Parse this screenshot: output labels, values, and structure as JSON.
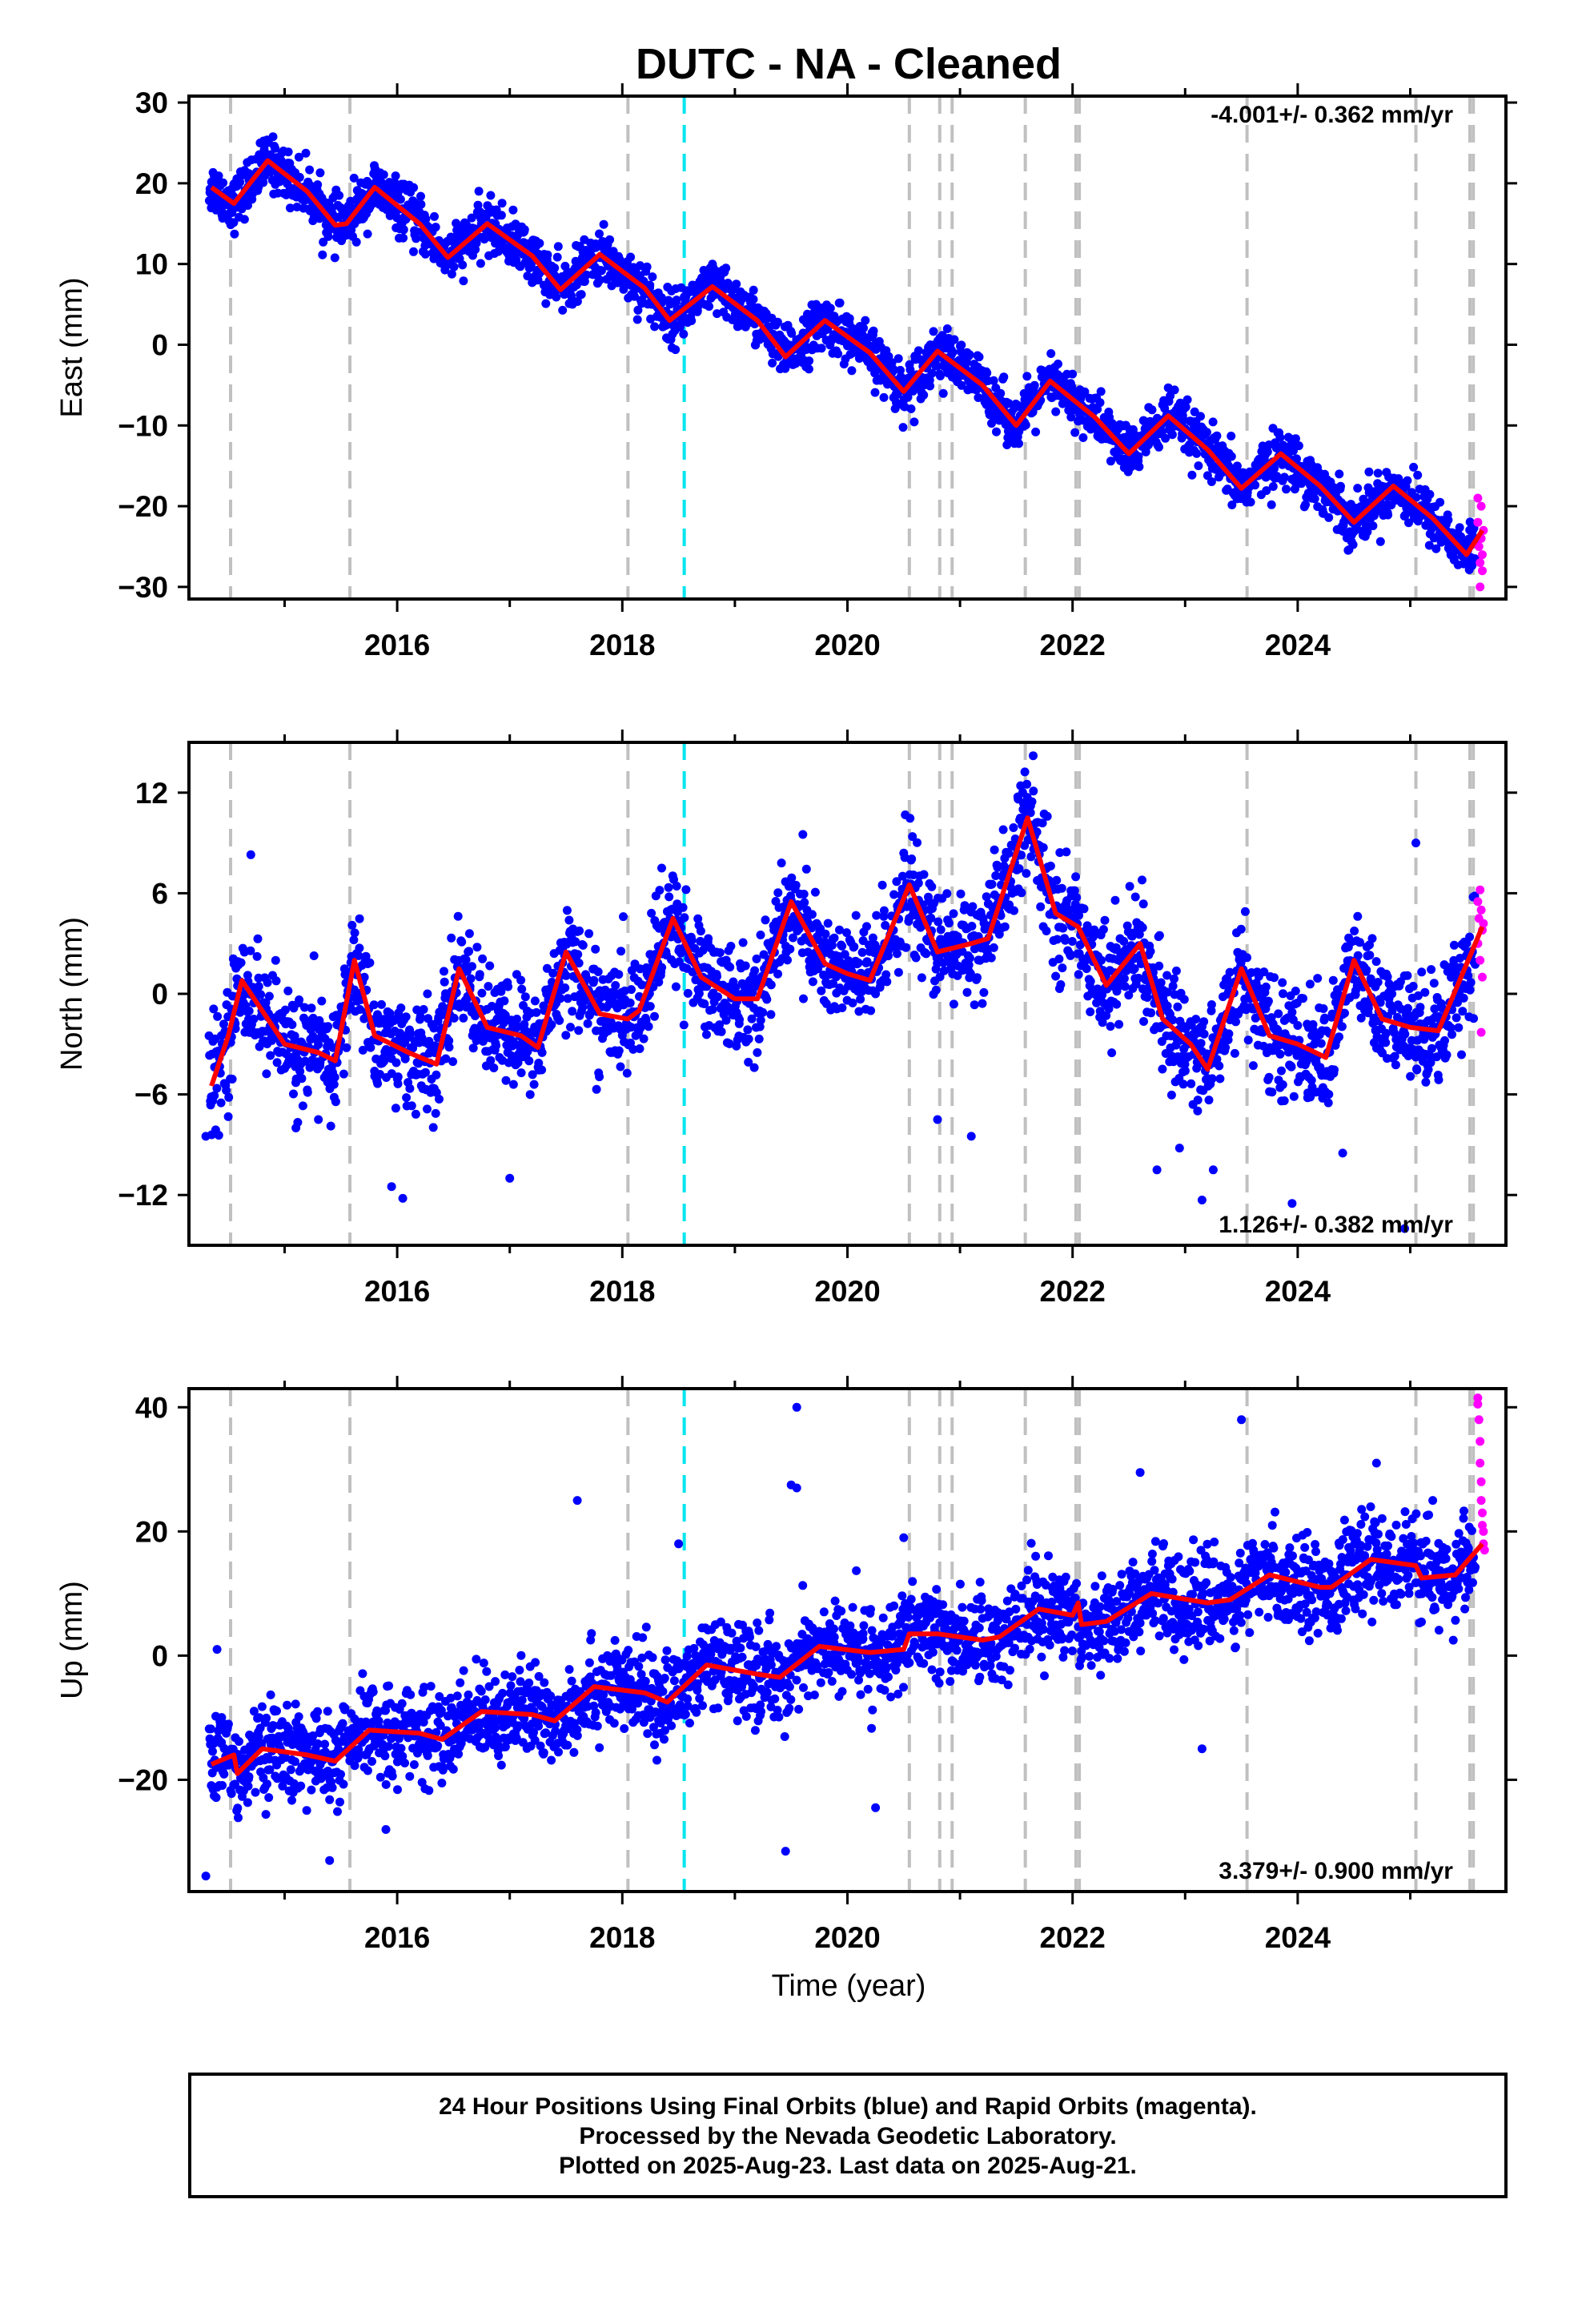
{
  "title": "DUTC  - NA - Cleaned",
  "xlabel": "Time (year)",
  "footer": {
    "line1": "24 Hour Positions Using Final Orbits (blue) and Rapid Orbits (magenta).",
    "line2": "Processed by the Nevada Geodetic Laboratory.",
    "line3": "Plotted on 2025-Aug-23. Last data on 2025-Aug-21."
  },
  "colors": {
    "final_orbits": "#0000ff",
    "rapid_orbits": "#ff00ff",
    "model": "#ff0000",
    "event_lines": "#c0c0c0",
    "equipment_line": "#00e5ee"
  },
  "chart_data": [
    {
      "type": "scatter",
      "component": "East",
      "ylabel": "East (mm)",
      "rate_label": "-4.001+/- 0.362 mm/yr",
      "xlim": [
        2014.15,
        2025.85
      ],
      "ylim": [
        -31.5,
        30.8
      ],
      "xticks": [
        2016,
        2018,
        2020,
        2022,
        2024
      ],
      "yticks": [
        -30,
        -20,
        -10,
        0,
        10,
        20,
        30
      ],
      "ytick_labels": [
        "−30",
        "−20",
        "−10",
        "0",
        "10",
        "20",
        "30"
      ],
      "rate_position": "top-right",
      "trend": {
        "t0": 2014.35,
        "v0": 19.5,
        "rate": -4.001
      },
      "seasonal": {
        "amplitude": 3.2,
        "phase": 0.25
      },
      "scatter_sd": 1.6,
      "fit_curve": [
        [
          2014.35,
          19.5
        ],
        [
          2014.55,
          17.5
        ],
        [
          2014.85,
          22.8
        ],
        [
          2015.2,
          19.0
        ],
        [
          2015.45,
          14.8
        ],
        [
          2015.55,
          15.0
        ],
        [
          2015.8,
          19.5
        ],
        [
          2016.2,
          15.0
        ],
        [
          2016.45,
          10.8
        ],
        [
          2016.8,
          15.0
        ],
        [
          2017.2,
          11.0
        ],
        [
          2017.45,
          6.8
        ],
        [
          2017.8,
          11.2
        ],
        [
          2018.2,
          7.0
        ],
        [
          2018.42,
          3.0
        ],
        [
          2018.8,
          7.2
        ],
        [
          2019.2,
          3.0
        ],
        [
          2019.45,
          -1.5
        ],
        [
          2019.8,
          3.0
        ],
        [
          2020.2,
          -1.0
        ],
        [
          2020.5,
          -5.8
        ],
        [
          2020.8,
          -0.8
        ],
        [
          2021.2,
          -5.0
        ],
        [
          2021.5,
          -10.0
        ],
        [
          2021.8,
          -4.5
        ],
        [
          2022.2,
          -9.0
        ],
        [
          2022.5,
          -13.5
        ],
        [
          2022.85,
          -8.8
        ],
        [
          2023.2,
          -13.0
        ],
        [
          2023.5,
          -17.8
        ],
        [
          2023.85,
          -13.5
        ],
        [
          2024.2,
          -17.5
        ],
        [
          2024.5,
          -22.0
        ],
        [
          2024.85,
          -17.5
        ],
        [
          2025.2,
          -21.5
        ],
        [
          2025.5,
          -26.0
        ],
        [
          2025.64,
          -23.0
        ]
      ],
      "rapid_points": [
        [
          2025.6,
          -19
        ],
        [
          2025.6,
          -22
        ],
        [
          2025.61,
          -25
        ],
        [
          2025.62,
          -27
        ],
        [
          2025.62,
          -30
        ],
        [
          2025.63,
          -20
        ],
        [
          2025.63,
          -24
        ],
        [
          2025.64,
          -26
        ],
        [
          2025.64,
          -28
        ],
        [
          2025.65,
          -23
        ]
      ]
    },
    {
      "type": "scatter",
      "component": "North",
      "ylabel": "North (mm)",
      "rate_label": "1.126+/- 0.382 mm/yr",
      "xlim": [
        2014.15,
        2025.85
      ],
      "ylim": [
        -15.0,
        15.0
      ],
      "xticks": [
        2016,
        2018,
        2020,
        2022,
        2024
      ],
      "yticks": [
        -12,
        -6,
        0,
        6,
        12
      ],
      "ytick_labels": [
        "−12",
        "−6",
        "0",
        "6",
        "12"
      ],
      "rate_position": "bottom-right",
      "scatter_sd": 1.6,
      "fit_curve": [
        [
          2014.35,
          -5.5
        ],
        [
          2014.5,
          -2.5
        ],
        [
          2014.62,
          0.8
        ],
        [
          2014.8,
          -1.0
        ],
        [
          2015.0,
          -3.0
        ],
        [
          2015.3,
          -3.5
        ],
        [
          2015.45,
          -4.0
        ],
        [
          2015.62,
          2.0
        ],
        [
          2015.8,
          -2.5
        ],
        [
          2016.1,
          -3.5
        ],
        [
          2016.35,
          -4.2
        ],
        [
          2016.55,
          1.5
        ],
        [
          2016.8,
          -2.0
        ],
        [
          2017.1,
          -2.5
        ],
        [
          2017.25,
          -3.2
        ],
        [
          2017.5,
          2.5
        ],
        [
          2017.8,
          -1.2
        ],
        [
          2018.05,
          -1.5
        ],
        [
          2018.15,
          -1.0
        ],
        [
          2018.45,
          4.5
        ],
        [
          2018.7,
          1.0
        ],
        [
          2019.0,
          -0.3
        ],
        [
          2019.2,
          -0.3
        ],
        [
          2019.5,
          5.5
        ],
        [
          2019.8,
          1.8
        ],
        [
          2020.0,
          1.2
        ],
        [
          2020.2,
          0.8
        ],
        [
          2020.55,
          6.5
        ],
        [
          2020.8,
          2.5
        ],
        [
          2021.1,
          3.0
        ],
        [
          2021.25,
          3.3
        ],
        [
          2021.6,
          10.5
        ],
        [
          2021.85,
          4.8
        ],
        [
          2022.05,
          4.0
        ],
        [
          2022.3,
          0.5
        ],
        [
          2022.6,
          3.0
        ],
        [
          2022.8,
          -1.5
        ],
        [
          2023.05,
          -3.0
        ],
        [
          2023.2,
          -4.5
        ],
        [
          2023.5,
          1.5
        ],
        [
          2023.75,
          -2.5
        ],
        [
          2024.0,
          -3.0
        ],
        [
          2024.25,
          -3.8
        ],
        [
          2024.5,
          2.0
        ],
        [
          2024.75,
          -1.5
        ],
        [
          2025.0,
          -2.0
        ],
        [
          2025.25,
          -2.2
        ],
        [
          2025.64,
          4.0
        ]
      ],
      "outliers": [
        [
          2014.3,
          -8.5
        ],
        [
          2014.7,
          8.3
        ],
        [
          2015.1,
          -8.0
        ],
        [
          2015.3,
          -7.5
        ],
        [
          2015.95,
          -11.5
        ],
        [
          2016.05,
          -12.2
        ],
        [
          2017.0,
          -11.0
        ],
        [
          2018.35,
          7.5
        ],
        [
          2020.8,
          -7.5
        ],
        [
          2021.1,
          -8.5
        ],
        [
          2021.65,
          14.2
        ],
        [
          2022.75,
          -10.5
        ],
        [
          2022.95,
          -9.2
        ],
        [
          2023.15,
          -12.3
        ],
        [
          2023.25,
          -10.5
        ],
        [
          2023.95,
          -12.5
        ],
        [
          2024.4,
          -9.5
        ],
        [
          2024.95,
          -14.0
        ],
        [
          2025.05,
          9.0
        ]
      ],
      "rapid_points": [
        [
          2025.6,
          5.5
        ],
        [
          2025.6,
          3.0
        ],
        [
          2025.61,
          4.5
        ],
        [
          2025.62,
          6.2
        ],
        [
          2025.62,
          2.0
        ],
        [
          2025.63,
          -2.3
        ],
        [
          2025.63,
          5.0
        ],
        [
          2025.64,
          3.8
        ],
        [
          2025.64,
          1.0
        ],
        [
          2025.65,
          4.2
        ]
      ]
    },
    {
      "type": "scatter",
      "component": "Up",
      "ylabel": "Up (mm)",
      "rate_label": "3.379+/- 0.900 mm/yr",
      "xlim": [
        2014.15,
        2025.85
      ],
      "ylim": [
        -38.0,
        43.0
      ],
      "xticks": [
        2016,
        2018,
        2020,
        2022,
        2024
      ],
      "yticks": [
        -20,
        0,
        20,
        40
      ],
      "ytick_labels": [
        "−20",
        "0",
        "20",
        "40"
      ],
      "rate_position": "bottom-right",
      "trend": {
        "t0": 2014.35,
        "v0": -17.0,
        "rate": 3.379
      },
      "seasonal": {
        "amplitude": 2.0,
        "phase": 0.6
      },
      "scatter_sd": 3.6,
      "fit_curve": [
        [
          2014.35,
          -17.5
        ],
        [
          2014.55,
          -16.0
        ],
        [
          2014.58,
          -19.0
        ],
        [
          2014.8,
          -15.0
        ],
        [
          2015.2,
          -16.0
        ],
        [
          2015.45,
          -17.0
        ],
        [
          2015.75,
          -12.0
        ],
        [
          2016.2,
          -12.5
        ],
        [
          2016.4,
          -13.5
        ],
        [
          2016.75,
          -9.0
        ],
        [
          2017.2,
          -9.5
        ],
        [
          2017.4,
          -10.5
        ],
        [
          2017.75,
          -5.0
        ],
        [
          2018.2,
          -6.0
        ],
        [
          2018.4,
          -7.5
        ],
        [
          2018.75,
          -1.5
        ],
        [
          2019.2,
          -3.0
        ],
        [
          2019.4,
          -3.5
        ],
        [
          2019.75,
          1.5
        ],
        [
          2020.2,
          0.5
        ],
        [
          2020.5,
          1.0
        ],
        [
          2020.55,
          3.5
        ],
        [
          2020.8,
          3.5
        ],
        [
          2021.2,
          2.5
        ],
        [
          2021.35,
          3.0
        ],
        [
          2021.7,
          7.5
        ],
        [
          2022.0,
          6.5
        ],
        [
          2022.05,
          8.5
        ],
        [
          2022.08,
          5.0
        ],
        [
          2022.3,
          5.5
        ],
        [
          2022.7,
          10.0
        ],
        [
          2023.2,
          8.5
        ],
        [
          2023.4,
          9.0
        ],
        [
          2023.75,
          13.0
        ],
        [
          2024.2,
          11.0
        ],
        [
          2024.3,
          11.0
        ],
        [
          2024.65,
          15.5
        ],
        [
          2025.05,
          14.5
        ],
        [
          2025.1,
          12.5
        ],
        [
          2025.4,
          13.0
        ],
        [
          2025.64,
          18.0
        ]
      ],
      "outliers": [
        [
          2014.3,
          -35.5
        ],
        [
          2014.4,
          1.0
        ],
        [
          2015.4,
          -33.0
        ],
        [
          2015.9,
          -28.0
        ],
        [
          2017.6,
          25.0
        ],
        [
          2018.5,
          18.0
        ],
        [
          2019.45,
          -31.5
        ],
        [
          2019.55,
          40.0
        ],
        [
          2019.5,
          27.5
        ],
        [
          2019.55,
          27.0
        ],
        [
          2020.5,
          19.0
        ],
        [
          2020.25,
          -24.5
        ],
        [
          2022.6,
          29.5
        ],
        [
          2023.5,
          38.0
        ],
        [
          2024.7,
          31.0
        ],
        [
          2023.15,
          -15.0
        ],
        [
          2025.2,
          25.0
        ]
      ],
      "rapid_points": [
        [
          2025.6,
          41.5
        ],
        [
          2025.6,
          40.5
        ],
        [
          2025.61,
          38.0
        ],
        [
          2025.62,
          34.5
        ],
        [
          2025.62,
          31.0
        ],
        [
          2025.63,
          28.0
        ],
        [
          2025.63,
          25.0
        ],
        [
          2025.64,
          23.0
        ],
        [
          2025.64,
          21.0
        ],
        [
          2025.65,
          20.0
        ],
        [
          2025.65,
          18.0
        ],
        [
          2025.66,
          17.0
        ]
      ]
    }
  ],
  "event_lines": [
    2014.52,
    2015.58,
    2018.05,
    2020.55,
    2020.82,
    2020.93,
    2021.58,
    2022.03,
    2022.06,
    2023.55,
    2025.05,
    2025.53,
    2025.56
  ],
  "equipment_line": 2018.55
}
